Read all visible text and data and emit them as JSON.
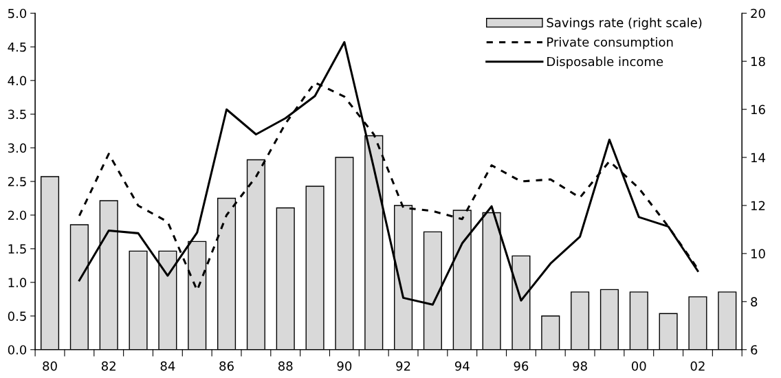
{
  "chart_data": {
    "type": "line",
    "categories": [
      "80",
      null,
      "82",
      null,
      "84",
      null,
      "86",
      null,
      "88",
      null,
      "90",
      null,
      "92",
      null,
      "94",
      null,
      "96",
      null,
      "98",
      null,
      "00",
      null,
      "02",
      null
    ],
    "series": [
      {
        "name": "Savings rate (right scale)",
        "type": "bar",
        "axis": "y2",
        "color": "#d9d9d9",
        "values": [
          13.2,
          11.2,
          12.2,
          10.1,
          10.1,
          10.5,
          12.3,
          13.9,
          11.9,
          12.8,
          14.0,
          14.9,
          12.0,
          10.9,
          11.8,
          11.7,
          9.9,
          7.4,
          8.4,
          8.5,
          8.4,
          7.5,
          8.2,
          8.4
        ]
      },
      {
        "name": "Private consumption",
        "line_style": "dashed",
        "color": "#000000",
        "values": [
          null,
          1.99,
          2.91,
          2.14,
          1.9,
          0.88,
          2.0,
          2.57,
          3.36,
          3.97,
          3.76,
          3.2,
          2.11,
          2.06,
          1.94,
          2.74,
          2.5,
          2.53,
          2.26,
          2.8,
          2.4,
          1.83,
          1.2,
          null
        ]
      },
      {
        "name": "Disposable income",
        "line_style": "solid",
        "color": "#000000",
        "values": [
          null,
          1.03,
          1.77,
          1.73,
          1.1,
          1.74,
          3.57,
          3.2,
          3.44,
          3.77,
          4.57,
          2.7,
          0.77,
          0.67,
          1.58,
          2.13,
          0.73,
          1.28,
          1.68,
          3.12,
          1.97,
          1.83,
          1.17,
          null
        ]
      }
    ],
    "ylim": [
      0,
      5
    ],
    "yticks": [
      {
        "value": 0,
        "label": "0.0"
      },
      {
        "value": 0.5,
        "label": "0.5"
      },
      {
        "value": 1,
        "label": "1.0"
      },
      {
        "value": 1.5,
        "label": "1.5"
      },
      {
        "value": 2,
        "label": "2.0"
      },
      {
        "value": 2.5,
        "label": "2.5"
      },
      {
        "value": 3,
        "label": "3.0"
      },
      {
        "value": 3.5,
        "label": "3.5"
      },
      {
        "value": 4,
        "label": "4.0"
      },
      {
        "value": 4.5,
        "label": "4.5"
      },
      {
        "value": 5,
        "label": "5.0"
      }
    ],
    "y2lim": [
      6,
      20
    ],
    "y2ticks": [
      6,
      8,
      10,
      12,
      14,
      16,
      18,
      20
    ],
    "grid": false,
    "legend": "top right",
    "marker": "none"
  }
}
